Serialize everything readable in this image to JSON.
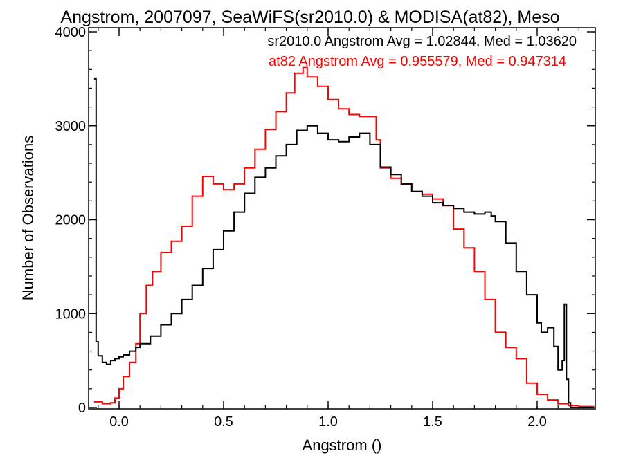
{
  "chart_data": {
    "type": "line",
    "title": "Angstrom, 2007097, SeaWiFS(sr2010.0) & MODISA(at82), Meso",
    "xlabel": "Angstrom ()",
    "ylabel": "Number of Observations",
    "xlim": [
      -0.12,
      2.27
    ],
    "ylim": [
      0,
      4000
    ],
    "xticks": [
      0.0,
      0.5,
      1.0,
      1.5,
      2.0
    ],
    "xtick_labels": [
      "0.0",
      "0.5",
      "1.0",
      "1.5",
      "2.0"
    ],
    "yticks": [
      0,
      1000,
      2000,
      3000,
      4000
    ],
    "ytick_labels": [
      "0",
      "1000",
      "2000",
      "3000",
      "4000"
    ],
    "grid": false,
    "annotations": [
      {
        "text": "sr2010.0 Angstrom Avg = 1.02844, Med = 1.03620",
        "color": "#000000"
      },
      {
        "text": "at82 Angstrom Avg = 0.955579, Med = 0.947314",
        "color": "#ff0000"
      }
    ],
    "series": [
      {
        "color": "#000000",
        "x": [
          -0.12,
          -0.11,
          -0.1,
          -0.08,
          -0.06,
          -0.04,
          -0.02,
          0.0,
          0.02,
          0.05,
          0.08,
          0.1,
          0.15,
          0.2,
          0.25,
          0.3,
          0.35,
          0.4,
          0.45,
          0.5,
          0.55,
          0.6,
          0.65,
          0.7,
          0.75,
          0.8,
          0.85,
          0.9,
          0.95,
          1.0,
          1.05,
          1.1,
          1.15,
          1.2,
          1.25,
          1.3,
          1.35,
          1.4,
          1.45,
          1.5,
          1.55,
          1.6,
          1.65,
          1.7,
          1.75,
          1.78,
          1.8,
          1.85,
          1.9,
          1.95,
          2.0,
          2.02,
          2.05,
          2.08,
          2.1,
          2.12,
          2.13,
          2.14,
          2.15,
          2.16,
          2.2,
          2.27
        ],
        "y": [
          3500,
          700,
          550,
          480,
          460,
          500,
          520,
          540,
          560,
          600,
          640,
          680,
          760,
          880,
          1000,
          1150,
          1300,
          1480,
          1680,
          1880,
          2080,
          2280,
          2450,
          2550,
          2680,
          2800,
          2950,
          3000,
          2920,
          2850,
          2830,
          2880,
          2920,
          2800,
          2560,
          2480,
          2380,
          2300,
          2250,
          2180,
          2150,
          2120,
          2080,
          2060,
          2080,
          2040,
          1980,
          1750,
          1450,
          1200,
          900,
          800,
          850,
          650,
          400,
          500,
          1100,
          300,
          50,
          0,
          0,
          0
        ]
      },
      {
        "color": "#ff0000",
        "x": [
          -0.12,
          -0.08,
          -0.04,
          -0.02,
          0.0,
          0.02,
          0.05,
          0.08,
          0.1,
          0.13,
          0.16,
          0.2,
          0.25,
          0.3,
          0.35,
          0.4,
          0.45,
          0.5,
          0.55,
          0.6,
          0.65,
          0.7,
          0.75,
          0.8,
          0.84,
          0.88,
          0.9,
          0.95,
          1.0,
          1.05,
          1.1,
          1.15,
          1.2,
          1.23,
          1.25,
          1.3,
          1.35,
          1.4,
          1.45,
          1.5,
          1.55,
          1.6,
          1.65,
          1.7,
          1.75,
          1.8,
          1.85,
          1.9,
          1.95,
          2.0,
          2.05,
          2.1,
          2.15,
          2.2,
          2.27
        ],
        "y": [
          60,
          40,
          50,
          100,
          200,
          330,
          480,
          680,
          1000,
          1300,
          1450,
          1650,
          1770,
          1930,
          2250,
          2460,
          2380,
          2320,
          2380,
          2550,
          2750,
          2960,
          3150,
          3350,
          3560,
          3620,
          3520,
          3420,
          3280,
          3180,
          3120,
          3100,
          3100,
          2850,
          2550,
          2440,
          2380,
          2300,
          2270,
          2220,
          2150,
          1900,
          1700,
          1450,
          1150,
          800,
          640,
          520,
          260,
          140,
          80,
          40,
          20,
          10,
          0
        ]
      }
    ]
  }
}
